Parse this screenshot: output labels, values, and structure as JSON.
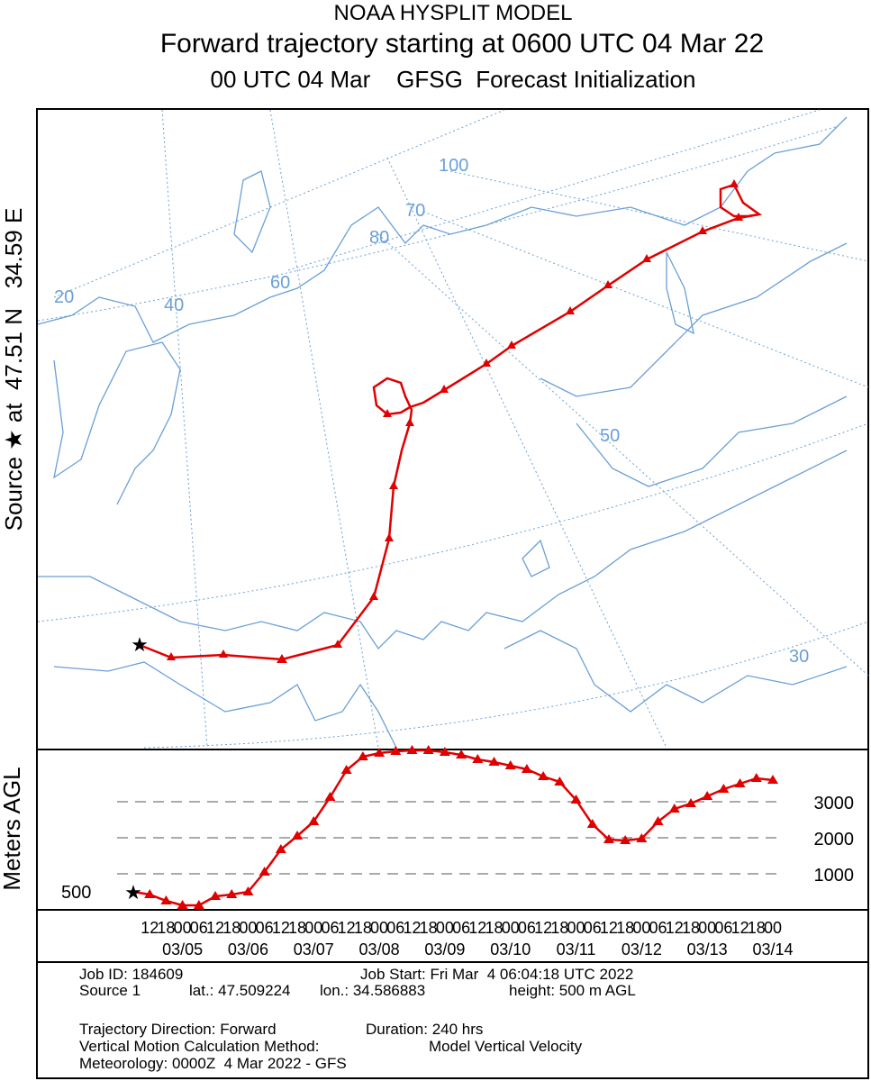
{
  "header": {
    "title": "NOAA HYSPLIT MODEL",
    "subtitle": "Forward trajectory starting at 0600 UTC 04 Mar 22",
    "init": "00 UTC 04 Mar    GFSG  Forecast Initialization"
  },
  "side_label": "Source ★ at  47.51 N   34.59 E",
  "map": {
    "grid_labels": [
      "100",
      "70",
      "80",
      "60",
      "40",
      "20",
      "50",
      "30"
    ]
  },
  "chart_data": {
    "type": "line",
    "y_label": "Meters AGL",
    "start_label": "500",
    "categories": [
      null,
      "12",
      "18",
      "00",
      "06",
      "12",
      "18",
      "00",
      "06",
      "12",
      "18",
      "00",
      "06",
      "12",
      "18",
      "00",
      "06",
      "12",
      "18",
      "00",
      "06",
      "12",
      "18",
      "00",
      "06",
      "12",
      "18",
      "00",
      "06",
      "12",
      "18",
      "00",
      "06",
      "12",
      "18",
      "00",
      "06",
      "12",
      "18",
      "00"
    ],
    "date_labels": [
      "03/05",
      "03/06",
      "03/07",
      "03/08",
      "03/09",
      "03/10",
      "03/11",
      "03/12",
      "03/13",
      "03/14"
    ],
    "series": [
      {
        "name": "Trajectory",
        "color": "#e00000",
        "values": [
          500,
          425,
          250,
          125,
          125,
          375,
          425,
          500,
          1050,
          1675,
          2050,
          2450,
          3125,
          3875,
          4250,
          4350,
          4400,
          4425,
          4425,
          4375,
          4300,
          4175,
          4100,
          4000,
          3900,
          3700,
          3550,
          3050,
          2375,
          1950,
          1925,
          1975,
          2450,
          2800,
          2950,
          3150,
          3350,
          3500,
          3650,
          3600
        ]
      }
    ],
    "ylim": [
      0,
      4450
    ],
    "yticks": [
      1000,
      2000,
      3000
    ],
    "grid": true
  },
  "info": {
    "job_id": "Job ID: 184609",
    "job_start": "Job Start: Fri Mar  4 06:04:18 UTC 2022",
    "source": "Source 1",
    "lat": "lat.: 47.509224",
    "lon": "lon.: 34.586883",
    "height": "height: 500 m AGL",
    "direction": "Trajectory Direction: Forward",
    "duration": "Duration: 240 hrs",
    "vm_method": "Vertical Motion Calculation Method:",
    "vm_value": "Model Vertical Velocity",
    "meteorology": "Meteorology: 0000Z  4 Mar 2022 - GFS"
  }
}
